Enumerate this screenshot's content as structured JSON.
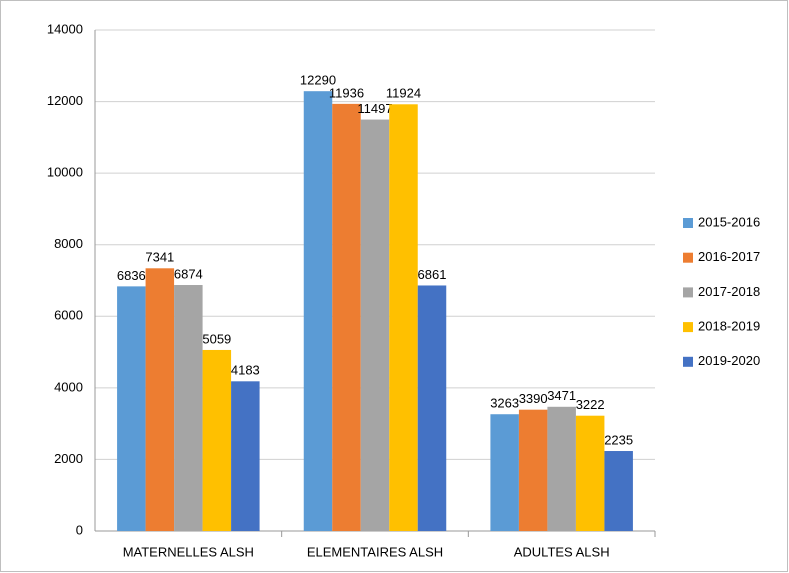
{
  "chart_data": {
    "type": "bar",
    "categories": [
      "MATERNELLES ALSH",
      "ELEMENTAIRES ALSH",
      "ADULTES ALSH"
    ],
    "series": [
      {
        "name": "2015-2016",
        "color": "#5b9bd5",
        "values": [
          6836,
          12290,
          3263
        ]
      },
      {
        "name": "2016-2017",
        "color": "#ed7d31",
        "values": [
          7341,
          11936,
          3390
        ]
      },
      {
        "name": "2017-2018",
        "color": "#a5a5a5",
        "values": [
          6874,
          11497,
          3471
        ]
      },
      {
        "name": "2018-2019",
        "color": "#ffc000",
        "values": [
          5059,
          11924,
          3222
        ]
      },
      {
        "name": "2019-2020",
        "color": "#4472c4",
        "values": [
          4183,
          6861,
          2235
        ]
      }
    ],
    "ylim": [
      0,
      14000
    ],
    "yticks": [
      0,
      2000,
      4000,
      6000,
      8000,
      10000,
      12000,
      14000
    ],
    "grid": true,
    "legend": "right"
  }
}
